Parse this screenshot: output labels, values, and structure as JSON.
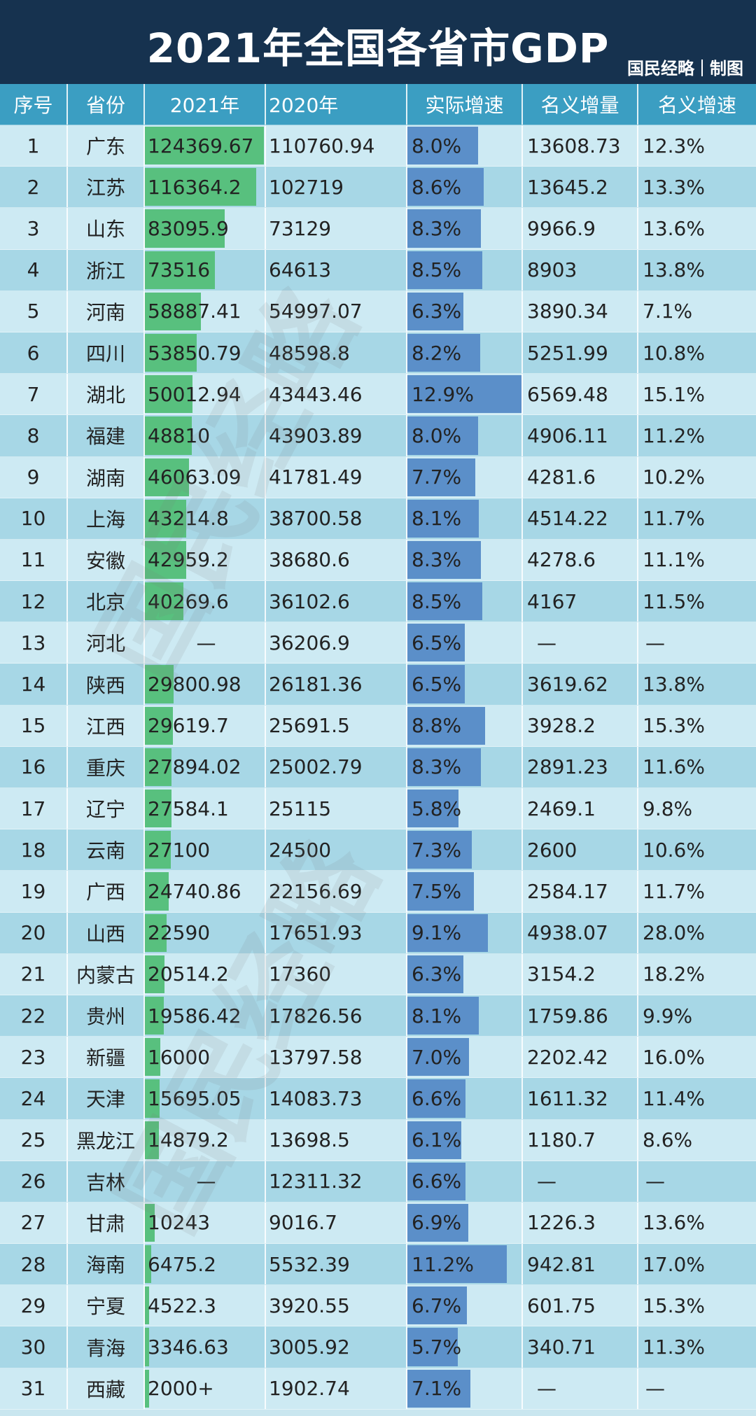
{
  "title": "2021年全国各省市GDP",
  "credit": {
    "org": "国民经略",
    "suffix": "制图"
  },
  "watermark_text": "国民经略",
  "colors": {
    "header": "#3b9ec2",
    "title_bg": "#16324f",
    "gdp_bar": "#58c07e",
    "growth_bar": "#5b8fc9",
    "row_light": "#cdeaf3",
    "row_dark": "#a7d7e6"
  },
  "headers": {
    "rank": "序号",
    "province": "省份",
    "gdp2021": "2021年",
    "gdp2020": "2020年",
    "real_growth": "实际增速",
    "nominal_increase": "名义增量",
    "nominal_growth": "名义增速"
  },
  "chart_data": {
    "type": "table",
    "columns": [
      "序号",
      "省份",
      "2021年",
      "2020年",
      "实际增速",
      "名义增量",
      "名义增速"
    ],
    "rows": [
      {
        "rank": "1",
        "province": "广东",
        "gdp2021": "124369.67",
        "gdp2021_value": 124369.67,
        "gdp2020": "110760.94",
        "real_growth": "8.0%",
        "real_growth_value": 8.0,
        "nominal_increase": "13608.73",
        "nominal_growth": "12.3%"
      },
      {
        "rank": "2",
        "province": "江苏",
        "gdp2021": "116364.2",
        "gdp2021_value": 116364.2,
        "gdp2020": "102719",
        "real_growth": "8.6%",
        "real_growth_value": 8.6,
        "nominal_increase": "13645.2",
        "nominal_growth": "13.3%"
      },
      {
        "rank": "3",
        "province": "山东",
        "gdp2021": "83095.9",
        "gdp2021_value": 83095.9,
        "gdp2020": "73129",
        "real_growth": "8.3%",
        "real_growth_value": 8.3,
        "nominal_increase": "9966.9",
        "nominal_growth": "13.6%"
      },
      {
        "rank": "4",
        "province": "浙江",
        "gdp2021": "73516",
        "gdp2021_value": 73516,
        "gdp2020": "64613",
        "real_growth": "8.5%",
        "real_growth_value": 8.5,
        "nominal_increase": "8903",
        "nominal_growth": "13.8%"
      },
      {
        "rank": "5",
        "province": "河南",
        "gdp2021": "58887.41",
        "gdp2021_value": 58887.41,
        "gdp2020": "54997.07",
        "real_growth": "6.3%",
        "real_growth_value": 6.3,
        "nominal_increase": "3890.34",
        "nominal_growth": "7.1%"
      },
      {
        "rank": "6",
        "province": "四川",
        "gdp2021": "53850.79",
        "gdp2021_value": 53850.79,
        "gdp2020": "48598.8",
        "real_growth": "8.2%",
        "real_growth_value": 8.2,
        "nominal_increase": "5251.99",
        "nominal_growth": "10.8%"
      },
      {
        "rank": "7",
        "province": "湖北",
        "gdp2021": "50012.94",
        "gdp2021_value": 50012.94,
        "gdp2020": "43443.46",
        "real_growth": "12.9%",
        "real_growth_value": 12.9,
        "nominal_increase": "6569.48",
        "nominal_growth": "15.1%"
      },
      {
        "rank": "8",
        "province": "福建",
        "gdp2021": "48810",
        "gdp2021_value": 48810,
        "gdp2020": "43903.89",
        "real_growth": "8.0%",
        "real_growth_value": 8.0,
        "nominal_increase": "4906.11",
        "nominal_growth": "11.2%"
      },
      {
        "rank": "9",
        "province": "湖南",
        "gdp2021": "46063.09",
        "gdp2021_value": 46063.09,
        "gdp2020": "41781.49",
        "real_growth": "7.7%",
        "real_growth_value": 7.7,
        "nominal_increase": "4281.6",
        "nominal_growth": "10.2%"
      },
      {
        "rank": "10",
        "province": "上海",
        "gdp2021": "43214.8",
        "gdp2021_value": 43214.8,
        "gdp2020": "38700.58",
        "real_growth": "8.1%",
        "real_growth_value": 8.1,
        "nominal_increase": "4514.22",
        "nominal_growth": "11.7%"
      },
      {
        "rank": "11",
        "province": "安徽",
        "gdp2021": "42959.2",
        "gdp2021_value": 42959.2,
        "gdp2020": "38680.6",
        "real_growth": "8.3%",
        "real_growth_value": 8.3,
        "nominal_increase": "4278.6",
        "nominal_growth": "11.1%"
      },
      {
        "rank": "12",
        "province": "北京",
        "gdp2021": "40269.6",
        "gdp2021_value": 40269.6,
        "gdp2020": "36102.6",
        "real_growth": "8.5%",
        "real_growth_value": 8.5,
        "nominal_increase": "4167",
        "nominal_growth": "11.5%"
      },
      {
        "rank": "13",
        "province": "河北",
        "gdp2021": "—",
        "gdp2021_value": null,
        "gdp2020": "36206.9",
        "real_growth": "6.5%",
        "real_growth_value": 6.5,
        "nominal_increase": "—",
        "nominal_growth": "—"
      },
      {
        "rank": "14",
        "province": "陕西",
        "gdp2021": "29800.98",
        "gdp2021_value": 29800.98,
        "gdp2020": "26181.36",
        "real_growth": "6.5%",
        "real_growth_value": 6.5,
        "nominal_increase": "3619.62",
        "nominal_growth": "13.8%"
      },
      {
        "rank": "15",
        "province": "江西",
        "gdp2021": "29619.7",
        "gdp2021_value": 29619.7,
        "gdp2020": "25691.5",
        "real_growth": "8.8%",
        "real_growth_value": 8.8,
        "nominal_increase": "3928.2",
        "nominal_growth": "15.3%"
      },
      {
        "rank": "16",
        "province": "重庆",
        "gdp2021": "27894.02",
        "gdp2021_value": 27894.02,
        "gdp2020": "25002.79",
        "real_growth": "8.3%",
        "real_growth_value": 8.3,
        "nominal_increase": "2891.23",
        "nominal_growth": "11.6%"
      },
      {
        "rank": "17",
        "province": "辽宁",
        "gdp2021": "27584.1",
        "gdp2021_value": 27584.1,
        "gdp2020": "25115",
        "real_growth": "5.8%",
        "real_growth_value": 5.8,
        "nominal_increase": "2469.1",
        "nominal_growth": "9.8%"
      },
      {
        "rank": "18",
        "province": "云南",
        "gdp2021": "27100",
        "gdp2021_value": 27100,
        "gdp2020": "24500",
        "real_growth": "7.3%",
        "real_growth_value": 7.3,
        "nominal_increase": "2600",
        "nominal_growth": "10.6%"
      },
      {
        "rank": "19",
        "province": "广西",
        "gdp2021": "24740.86",
        "gdp2021_value": 24740.86,
        "gdp2020": "22156.69",
        "real_growth": "7.5%",
        "real_growth_value": 7.5,
        "nominal_increase": "2584.17",
        "nominal_growth": "11.7%"
      },
      {
        "rank": "20",
        "province": "山西",
        "gdp2021": "22590",
        "gdp2021_value": 22590,
        "gdp2020": "17651.93",
        "real_growth": "9.1%",
        "real_growth_value": 9.1,
        "nominal_increase": "4938.07",
        "nominal_growth": "28.0%"
      },
      {
        "rank": "21",
        "province": "内蒙古",
        "gdp2021": "20514.2",
        "gdp2021_value": 20514.2,
        "gdp2020": "17360",
        "real_growth": "6.3%",
        "real_growth_value": 6.3,
        "nominal_increase": "3154.2",
        "nominal_growth": "18.2%"
      },
      {
        "rank": "22",
        "province": "贵州",
        "gdp2021": "19586.42",
        "gdp2021_value": 19586.42,
        "gdp2020": "17826.56",
        "real_growth": "8.1%",
        "real_growth_value": 8.1,
        "nominal_increase": "1759.86",
        "nominal_growth": "9.9%"
      },
      {
        "rank": "23",
        "province": "新疆",
        "gdp2021": "16000",
        "gdp2021_value": 16000,
        "gdp2020": "13797.58",
        "real_growth": "7.0%",
        "real_growth_value": 7.0,
        "nominal_increase": "2202.42",
        "nominal_growth": "16.0%"
      },
      {
        "rank": "24",
        "province": "天津",
        "gdp2021": "15695.05",
        "gdp2021_value": 15695.05,
        "gdp2020": "14083.73",
        "real_growth": "6.6%",
        "real_growth_value": 6.6,
        "nominal_increase": "1611.32",
        "nominal_growth": "11.4%"
      },
      {
        "rank": "25",
        "province": "黑龙江",
        "gdp2021": "14879.2",
        "gdp2021_value": 14879.2,
        "gdp2020": "13698.5",
        "real_growth": "6.1%",
        "real_growth_value": 6.1,
        "nominal_increase": "1180.7",
        "nominal_growth": "8.6%"
      },
      {
        "rank": "26",
        "province": "吉林",
        "gdp2021": "—",
        "gdp2021_value": null,
        "gdp2020": "12311.32",
        "real_growth": "6.6%",
        "real_growth_value": 6.6,
        "nominal_increase": "—",
        "nominal_growth": "—"
      },
      {
        "rank": "27",
        "province": "甘肃",
        "gdp2021": "10243",
        "gdp2021_value": 10243,
        "gdp2020": "9016.7",
        "real_growth": "6.9%",
        "real_growth_value": 6.9,
        "nominal_increase": "1226.3",
        "nominal_growth": "13.6%"
      },
      {
        "rank": "28",
        "province": "海南",
        "gdp2021": "6475.2",
        "gdp2021_value": 6475.2,
        "gdp2020": "5532.39",
        "real_growth": "11.2%",
        "real_growth_value": 11.2,
        "nominal_increase": "942.81",
        "nominal_growth": "17.0%"
      },
      {
        "rank": "29",
        "province": "宁夏",
        "gdp2021": "4522.3",
        "gdp2021_value": 4522.3,
        "gdp2020": "3920.55",
        "real_growth": "6.7%",
        "real_growth_value": 6.7,
        "nominal_increase": "601.75",
        "nominal_growth": "15.3%"
      },
      {
        "rank": "30",
        "province": "青海",
        "gdp2021": "3346.63",
        "gdp2021_value": 3346.63,
        "gdp2020": "3005.92",
        "real_growth": "5.7%",
        "real_growth_value": 5.7,
        "nominal_increase": "340.71",
        "nominal_growth": "11.3%"
      },
      {
        "rank": "31",
        "province": "西藏",
        "gdp2021": "2000+",
        "gdp2021_value": 2000,
        "gdp2020": "1902.74",
        "real_growth": "7.1%",
        "real_growth_value": 7.1,
        "nominal_increase": "—",
        "nominal_growth": "—"
      }
    ],
    "gdp_bar_max": 124369.67,
    "growth_bar_max": 12.9
  }
}
